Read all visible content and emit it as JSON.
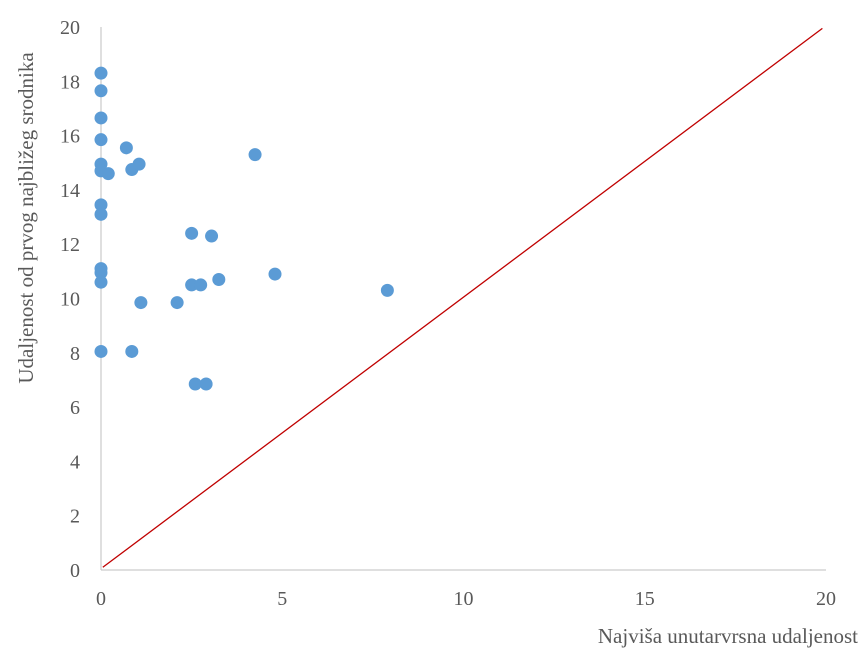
{
  "chart_data": {
    "type": "scatter",
    "title": "",
    "xlabel": "Najviša unutarvrsna udaljenost",
    "ylabel": "Udaljenost od prvog najbližeg srodnika",
    "xlim": [
      0,
      20
    ],
    "ylim": [
      0,
      20
    ],
    "x_ticks": [
      "0",
      "5",
      "10",
      "15",
      "20"
    ],
    "y_ticks": [
      "0",
      "2",
      "4",
      "6",
      "8",
      "10",
      "12",
      "14",
      "16",
      "18",
      "20"
    ],
    "grid": false,
    "legend": "none",
    "marker_color": "#5B9BD5",
    "reference_line": {
      "color": "#C00000",
      "from": [
        0.05,
        0.1
      ],
      "to": [
        19.9,
        19.95
      ]
    },
    "points": [
      {
        "x": 0.0,
        "y": 18.3
      },
      {
        "x": 0.0,
        "y": 17.65
      },
      {
        "x": 0.0,
        "y": 16.65
      },
      {
        "x": 0.0,
        "y": 15.85
      },
      {
        "x": 0.0,
        "y": 14.95
      },
      {
        "x": 0.0,
        "y": 14.7
      },
      {
        "x": 0.2,
        "y": 14.6
      },
      {
        "x": 0.7,
        "y": 15.55
      },
      {
        "x": 0.85,
        "y": 14.75
      },
      {
        "x": 1.05,
        "y": 14.95
      },
      {
        "x": 0.0,
        "y": 13.45
      },
      {
        "x": 0.0,
        "y": 13.1
      },
      {
        "x": 0.0,
        "y": 11.1
      },
      {
        "x": 0.0,
        "y": 10.95
      },
      {
        "x": 0.0,
        "y": 10.6
      },
      {
        "x": 0.0,
        "y": 8.05
      },
      {
        "x": 0.85,
        "y": 8.05
      },
      {
        "x": 1.1,
        "y": 9.85
      },
      {
        "x": 2.1,
        "y": 9.85
      },
      {
        "x": 2.5,
        "y": 12.4
      },
      {
        "x": 3.05,
        "y": 12.3
      },
      {
        "x": 2.5,
        "y": 10.5
      },
      {
        "x": 2.75,
        "y": 10.5
      },
      {
        "x": 3.25,
        "y": 10.7
      },
      {
        "x": 2.6,
        "y": 6.85
      },
      {
        "x": 2.9,
        "y": 6.85
      },
      {
        "x": 4.25,
        "y": 15.3
      },
      {
        "x": 4.8,
        "y": 10.9
      },
      {
        "x": 7.9,
        "y": 10.3
      }
    ]
  }
}
